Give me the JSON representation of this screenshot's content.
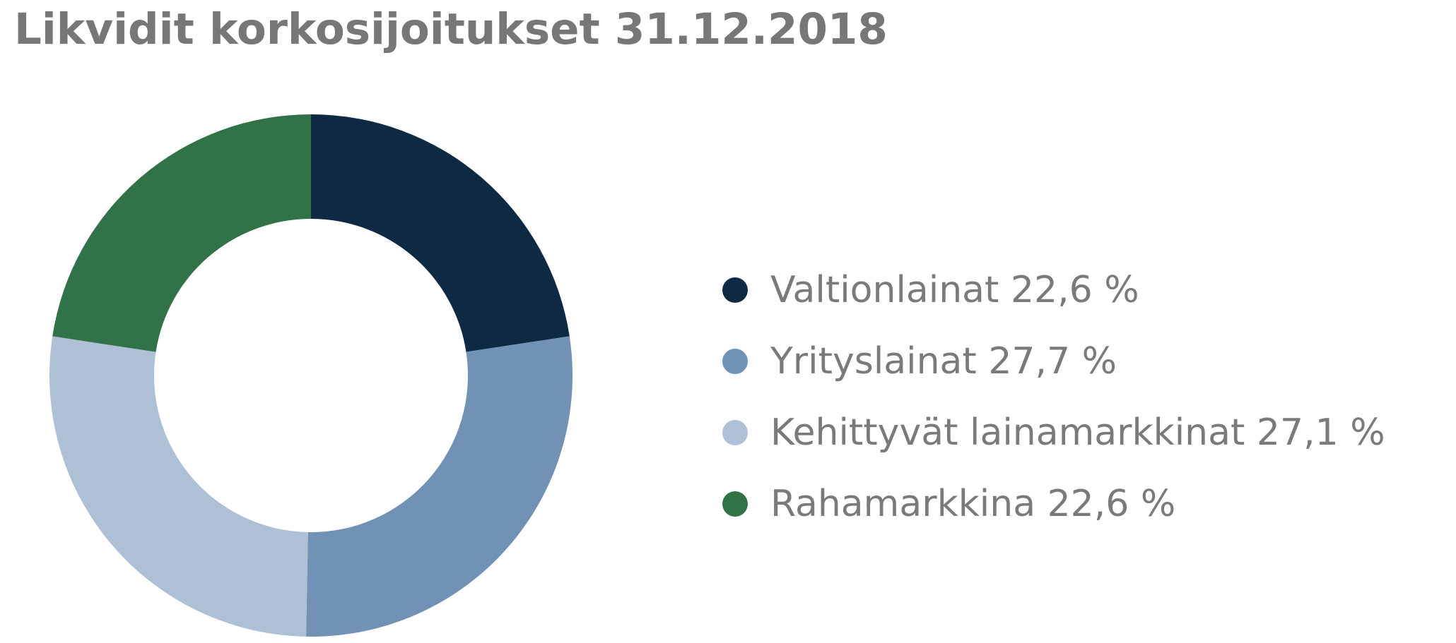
{
  "chart_data": {
    "type": "pie",
    "variant": "donut",
    "title": "Likvidit korkosijoitukset 31.12.2018",
    "legend_position": "right",
    "slices": [
      {
        "name": "Valtionlainat",
        "label": "Valtionlainat 22,6 %",
        "value": 22.6,
        "color": "#0d2a42"
      },
      {
        "name": "Yrityslainat",
        "label": "Yrityslainat 27,7 %",
        "value": 27.7,
        "color": "#7192b4"
      },
      {
        "name": "Kehittyvät lainamarkkinat",
        "label": "Kehittyvät lainamarkkinat 27,1 %",
        "value": 27.1,
        "color": "#adc0d5"
      },
      {
        "name": "Rahamarkkina",
        "label": "Rahamarkkina 22,6 %",
        "value": 22.6,
        "color": "#327249"
      }
    ]
  }
}
